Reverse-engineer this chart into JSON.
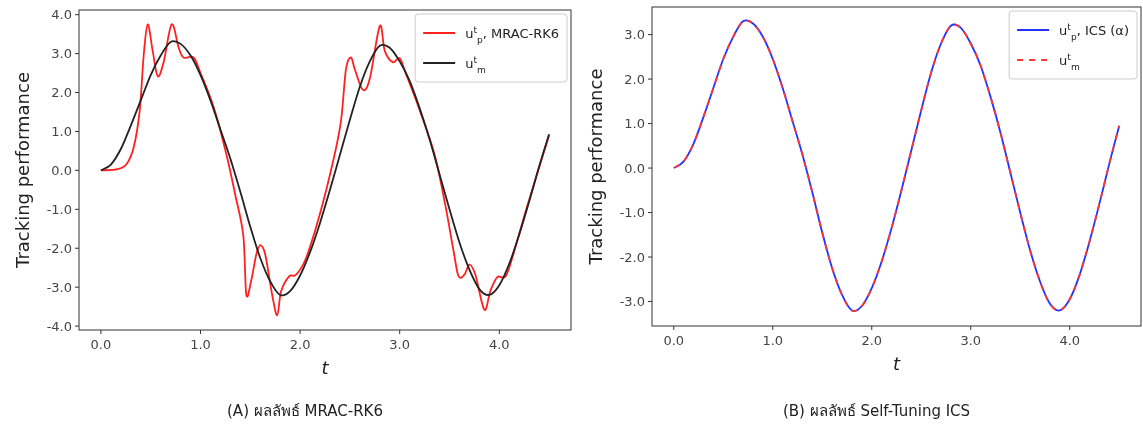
{
  "chart_data": [
    {
      "type": "line",
      "xlabel": "t",
      "ylabel": "Tracking performance",
      "xlim": [
        -0.22,
        4.72
      ],
      "ylim": [
        -4.1,
        4.12
      ],
      "xticks": [
        {
          "value": 0,
          "label": "0.0"
        },
        {
          "value": 1,
          "label": "1.0"
        },
        {
          "value": 2,
          "label": "2.0"
        },
        {
          "value": 3,
          "label": "3.0"
        },
        {
          "value": 4,
          "label": "4.0"
        }
      ],
      "yticks": [
        {
          "value": -4,
          "label": "-4.0"
        },
        {
          "value": -3,
          "label": "-3.0"
        },
        {
          "value": -2,
          "label": "-2.0"
        },
        {
          "value": -1,
          "label": "-1.0"
        },
        {
          "value": 0,
          "label": "0.0"
        },
        {
          "value": 1,
          "label": "1.0"
        },
        {
          "value": 2,
          "label": "2.0"
        },
        {
          "value": 3,
          "label": "3.0"
        },
        {
          "value": 4,
          "label": "4.0"
        }
      ],
      "legend": "top right",
      "annotations": [
        "(A) ผลลัพธ์ MRAC-RK6"
      ],
      "x": [
        0,
        0.1,
        0.2,
        0.3,
        0.4,
        0.5,
        0.6,
        0.7,
        0.8,
        0.9,
        1.0,
        1.1,
        1.2,
        1.3,
        1.4,
        1.5,
        1.6,
        1.7,
        1.8,
        1.9,
        2.0,
        2.1,
        2.2,
        2.3,
        2.4,
        2.5,
        2.6,
        2.7,
        2.8,
        2.9,
        3.0,
        3.1,
        3.2,
        3.3,
        3.4,
        3.5,
        3.6,
        3.7,
        3.8,
        3.9,
        4.0,
        4.1,
        4.2,
        4.3,
        4.4,
        4.5
      ],
      "series": [
        {
          "name": "u$^{t}$$_{p}$, MRAC-RK6",
          "color": "#ff2020",
          "line_style": "solid",
          "x": [
            0,
            0.17,
            0.26,
            0.33,
            0.39,
            0.43,
            0.47,
            0.52,
            0.57,
            0.63,
            0.71,
            0.78,
            0.83,
            0.93,
            1.0,
            1.13,
            1.26,
            1.35,
            1.43,
            1.46,
            1.51,
            1.56,
            1.6,
            1.65,
            1.72,
            1.77,
            1.81,
            1.89,
            1.96,
            2.06,
            2.2,
            2.33,
            2.41,
            2.46,
            2.51,
            2.55,
            2.63,
            2.7,
            2.8,
            2.85,
            2.93,
            3.0,
            3.06,
            3.2,
            3.35,
            3.46,
            3.54,
            3.59,
            3.65,
            3.7,
            3.76,
            3.85,
            3.91,
            3.98,
            4.06,
            4.13,
            4.28,
            4.5
          ],
          "values": [
            0,
            0.03,
            0.17,
            0.6,
            1.55,
            2.97,
            3.75,
            3.07,
            2.42,
            2.78,
            3.75,
            3.16,
            2.9,
            2.9,
            2.5,
            1.64,
            0.41,
            -0.64,
            -1.68,
            -3.2,
            -2.82,
            -2.16,
            -1.92,
            -2.16,
            -3.2,
            -3.72,
            -3.1,
            -2.72,
            -2.68,
            -2.25,
            -1.11,
            0.22,
            1.26,
            2.59,
            2.9,
            2.59,
            2.07,
            2.36,
            3.71,
            3.07,
            2.78,
            2.88,
            2.5,
            1.55,
            0.41,
            -0.92,
            -2.06,
            -2.71,
            -2.68,
            -2.42,
            -2.68,
            -3.58,
            -3.1,
            -2.74,
            -2.73,
            -2.25,
            -0.92,
            0.9
          ]
        },
        {
          "name": "u$^{t}$$_{m}$",
          "color": "#222222",
          "line_style": "solid",
          "values": [
            0,
            0.15,
            0.55,
            1.15,
            1.8,
            2.45,
            2.95,
            3.3,
            3.25,
            2.95,
            2.45,
            1.8,
            1.05,
            0.3,
            -0.55,
            -1.45,
            -2.25,
            -2.85,
            -3.2,
            -3.1,
            -2.7,
            -2.1,
            -1.35,
            -0.5,
            0.4,
            1.3,
            2.15,
            2.8,
            3.2,
            3.15,
            2.8,
            2.3,
            1.6,
            0.8,
            -0.1,
            -1.0,
            -1.85,
            -2.55,
            -3.05,
            -3.2,
            -2.95,
            -2.4,
            -1.65,
            -0.8,
            0.1,
            0.93
          ]
        }
      ]
    },
    {
      "type": "line",
      "xlabel": "t",
      "ylabel": "Tracking performance",
      "xlim": [
        -0.22,
        4.72
      ],
      "ylim": [
        -3.55,
        3.62
      ],
      "xticks": [
        {
          "value": 0,
          "label": "0.0"
        },
        {
          "value": 1,
          "label": "1.0"
        },
        {
          "value": 2,
          "label": "2.0"
        },
        {
          "value": 3,
          "label": "3.0"
        },
        {
          "value": 4,
          "label": "4.0"
        }
      ],
      "yticks": [
        {
          "value": -3,
          "label": "-3.0"
        },
        {
          "value": -2,
          "label": "-2.0"
        },
        {
          "value": -1,
          "label": "-1.0"
        },
        {
          "value": 0,
          "label": "0.0"
        },
        {
          "value": 1,
          "label": "1.0"
        },
        {
          "value": 2,
          "label": "2.0"
        },
        {
          "value": 3,
          "label": "3.0"
        }
      ],
      "legend": "top right",
      "annotations": [
        "(B) ผลลัพธ์ Self-Tuning ICS"
      ],
      "x": [
        0,
        0.1,
        0.2,
        0.3,
        0.4,
        0.5,
        0.6,
        0.7,
        0.8,
        0.9,
        1.0,
        1.1,
        1.2,
        1.3,
        1.4,
        1.5,
        1.6,
        1.7,
        1.8,
        1.9,
        2.0,
        2.1,
        2.2,
        2.3,
        2.4,
        2.5,
        2.6,
        2.7,
        2.8,
        2.9,
        3.0,
        3.1,
        3.2,
        3.3,
        3.4,
        3.5,
        3.6,
        3.7,
        3.8,
        3.9,
        4.0,
        4.1,
        4.2,
        4.3,
        4.4,
        4.5
      ],
      "series": [
        {
          "name": "u$^{t}$$_{p}$, ICS (α)",
          "color": "#2233ff",
          "line_style": "solid",
          "values": [
            0,
            0.15,
            0.55,
            1.15,
            1.8,
            2.45,
            2.95,
            3.3,
            3.25,
            2.95,
            2.45,
            1.8,
            1.05,
            0.3,
            -0.55,
            -1.45,
            -2.25,
            -2.85,
            -3.2,
            -3.1,
            -2.7,
            -2.1,
            -1.35,
            -0.5,
            0.4,
            1.3,
            2.15,
            2.8,
            3.2,
            3.15,
            2.8,
            2.3,
            1.6,
            0.8,
            -0.1,
            -1.0,
            -1.85,
            -2.55,
            -3.05,
            -3.2,
            -2.95,
            -2.4,
            -1.65,
            -0.8,
            0.1,
            0.95
          ]
        },
        {
          "name": "u$^{t}$$_{m}$",
          "color": "#ff3333",
          "line_style": "dashed",
          "values": [
            0,
            0.15,
            0.55,
            1.15,
            1.8,
            2.45,
            2.95,
            3.3,
            3.25,
            2.95,
            2.45,
            1.8,
            1.05,
            0.3,
            -0.55,
            -1.45,
            -2.25,
            -2.85,
            -3.2,
            -3.1,
            -2.7,
            -2.1,
            -1.35,
            -0.5,
            0.4,
            1.3,
            2.15,
            2.8,
            3.2,
            3.15,
            2.8,
            2.3,
            1.6,
            0.8,
            -0.1,
            -1.0,
            -1.85,
            -2.55,
            -3.05,
            -3.2,
            -2.95,
            -2.4,
            -1.65,
            -0.8,
            0.1,
            0.95
          ]
        }
      ]
    }
  ]
}
